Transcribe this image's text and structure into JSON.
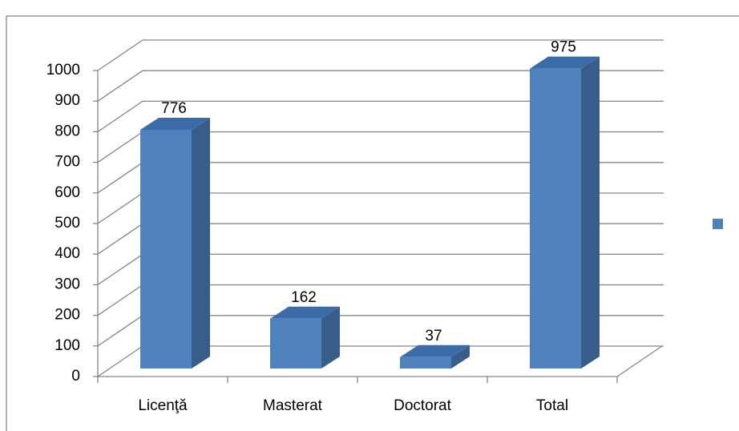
{
  "chart_data": {
    "type": "bar3d",
    "categories": [
      "Licenţă",
      "Masterat",
      "Doctorat",
      "Total"
    ],
    "values": [
      776,
      162,
      37,
      975
    ],
    "color": "#4f81bd",
    "ylim": [
      0,
      1000
    ],
    "yticks": [
      0,
      100,
      200,
      300,
      400,
      500,
      600,
      700,
      800,
      900,
      1000
    ],
    "grid": true
  }
}
